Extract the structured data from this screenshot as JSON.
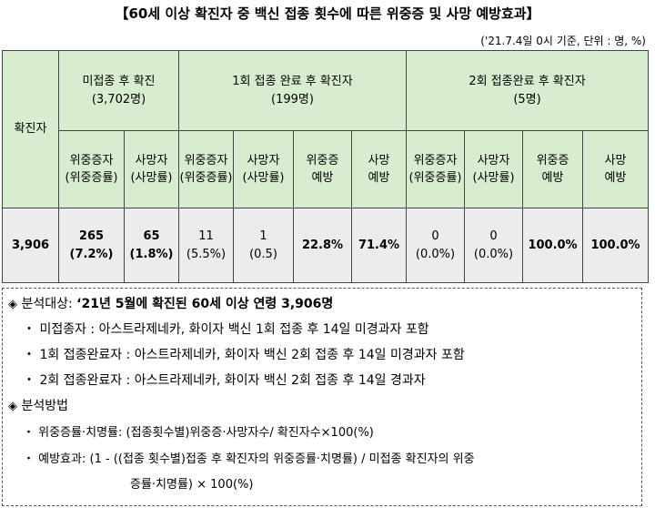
{
  "title": "【60세 이상 확진자 중 백신 접종 횟수에 따른 위중증 및 사망 예방효과】",
  "note": "('21.7.4일 0시 기준, 단위 : 명, %)",
  "table": {
    "col_confirmed": "확진자",
    "group_unvacc": {
      "line1": "미접종 후 확진",
      "line2": "(3,702명)"
    },
    "group_dose1": {
      "line1": "1회 접종 완료 후 확진자",
      "line2": "(199명)"
    },
    "group_dose2": {
      "line1": "2회 접종완료 후 확진자",
      "line2": "(5명)"
    },
    "sub": {
      "severe_l1": "위중증자",
      "severe_l2": "(위중증률)",
      "death_l1": "사망자",
      "death_l2": "(사망률)",
      "prevent_severe_l1": "위중증",
      "prevent_severe_l2": "예방",
      "prevent_death_l1": "사망",
      "prevent_death_l2": "예방"
    },
    "row": {
      "confirmed": "3,906",
      "u_severe": "265",
      "u_severe_rate": "(7.2%)",
      "u_death": "65",
      "u_death_rate": "(1.8%)",
      "d1_severe": "11",
      "d1_severe_rate": "(5.5%)",
      "d1_death": "1",
      "d1_death_rate": "(0.5)",
      "d1_prev_severe": "22.8%",
      "d1_prev_death": "71.4%",
      "d2_severe": "0",
      "d2_severe_rate": "(0.0%)",
      "d2_death": "0",
      "d2_death_rate": "(0.0%)",
      "d2_prev_severe": "100.0%",
      "d2_prev_death": "100.0%"
    }
  },
  "notes": {
    "diamond": "◈",
    "bullet": "・",
    "target_label": "분석대상: ",
    "target_text": "‘21년 5월에 확진된 60세 이상 연령 3,906명",
    "target_items": [
      "미접종자 : 아스트라제네카, 화이자 백신 1회 접종 후 14일 미경과자 포함",
      "1회 접종완료자 : 아스트라제네카, 화이자 백신 2회 접종 후 14일 미경과자 포함",
      "2회 접종완료자 : 아스트라제네카, 화이자 백신 2회 접종 후 14일 경과자"
    ],
    "method_label": "분석방법",
    "method_items": [
      "위중증률·치명률: (접종횟수별)위중증·사망자수/ 확진자수×100(%)",
      "예방효과: (1 - ((접종 횟수별)접종 후 확진자의 위중증률·치명률) / 미접종 확진자의 위중",
      "증률·치명률) × 100(%)"
    ]
  }
}
